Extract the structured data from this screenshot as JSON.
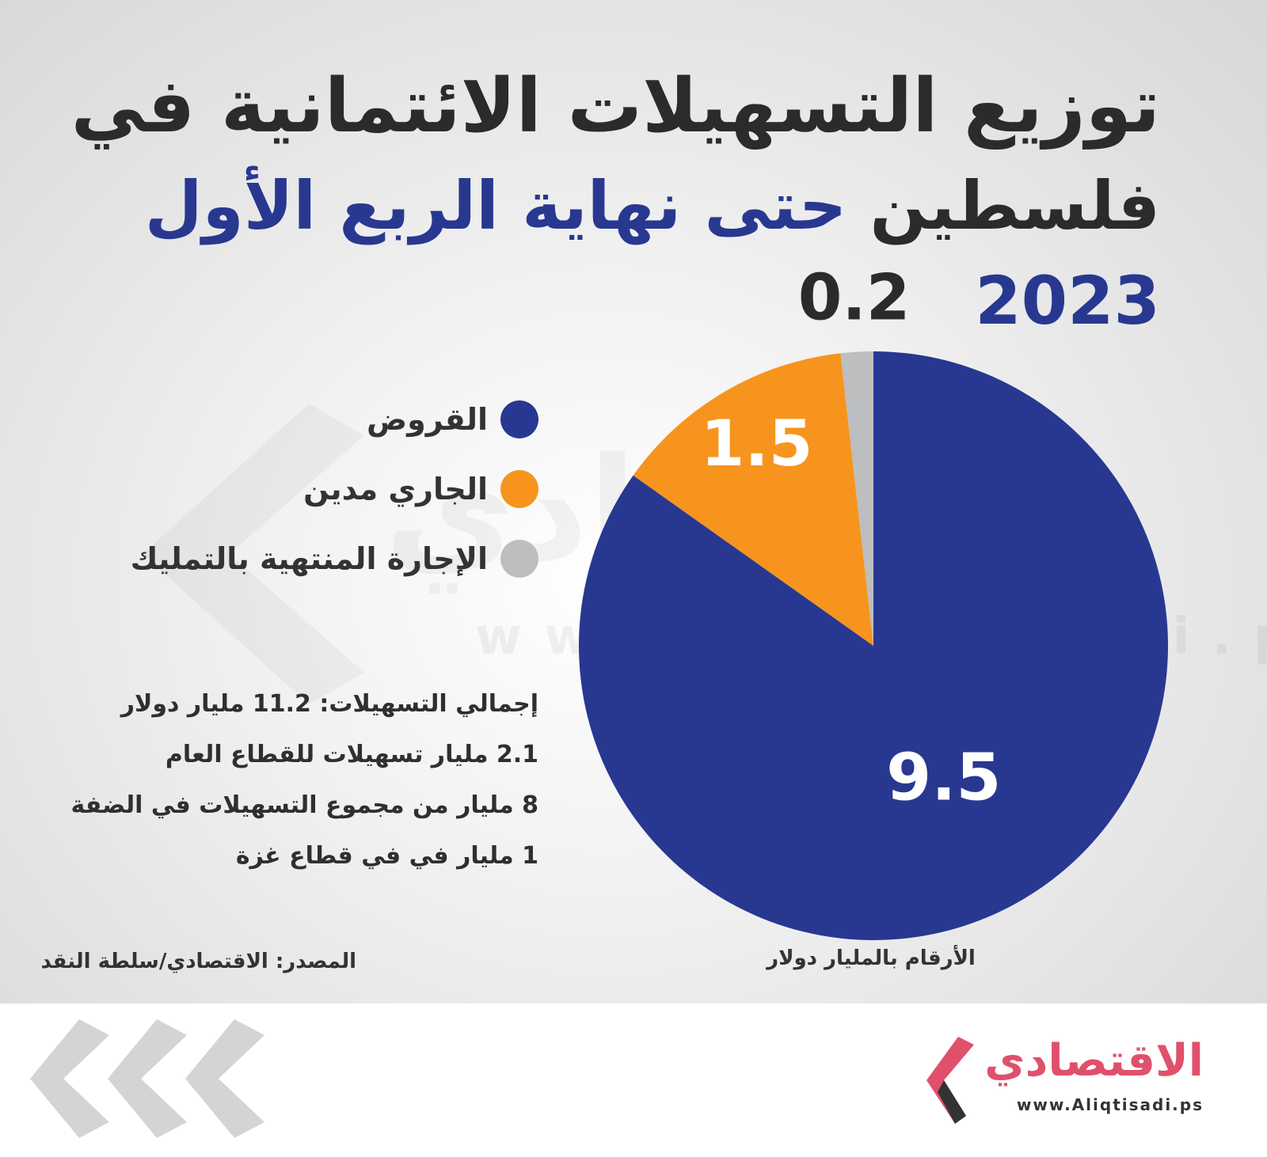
{
  "header": {
    "title_line1": "توزيع التسهيلات الائتمانية في",
    "title_line2_dark": "فلسطين",
    "title_line2_blue": "حتى نهاية الربع الأول 2023"
  },
  "chart_data": {
    "type": "pie",
    "categories": [
      "القروض",
      "الجاري مدين",
      "الإجارة المنتهية بالتمليك"
    ],
    "values": [
      9.5,
      1.5,
      0.2
    ],
    "colors": [
      "#283891",
      "#f7941d",
      "#bcbec0"
    ],
    "data_labels": [
      "9.5",
      "1.5",
      "0.2"
    ],
    "unit_note": "الأرقام بالمليار دولار",
    "legend_position": "left"
  },
  "notes": [
    "إجمالي التسهيلات: 11.2 مليار دولار",
    "2.1 مليار تسهيلات للقطاع العام",
    "8 مليار من مجموع التسهيلات في الضفة",
    "1 مليار في في قطاع غزة"
  ],
  "source": "المصدر: الاقتصادي/سلطة النقد",
  "watermark": {
    "word": "الاقتصادي",
    "url": "www.Aliqtisadi.ps"
  },
  "logo": {
    "name": "الاقتصادي",
    "url": "www.Aliqtisadi.ps"
  }
}
